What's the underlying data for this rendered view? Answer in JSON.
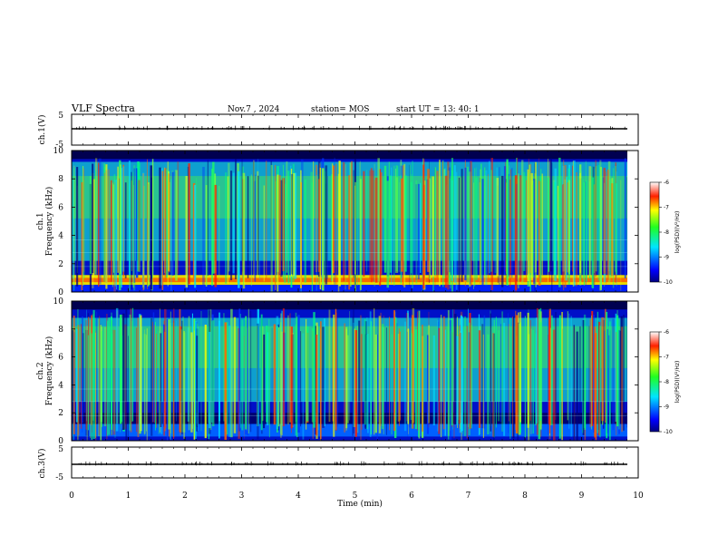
{
  "header": {
    "title": "VLF Spectra",
    "date": "Nov.7 , 2024",
    "station": "station= MOS",
    "start": "start UT =  13: 40: 1"
  },
  "chart_data": [
    {
      "type": "line",
      "panel": "ch1-waveform",
      "ylabel": "ch.1(V)",
      "ylim": [
        -5,
        5
      ],
      "yticks": [
        "5",
        "-5"
      ],
      "xlim": [
        0,
        10
      ],
      "series": [
        {
          "values": [
            0,
            0
          ]
        }
      ]
    },
    {
      "type": "heatmap",
      "panel": "ch1-spectrogram",
      "ylabel": "ch.1 Frequency (kHz)",
      "ylabel_line1": "ch.1",
      "ylabel_line2": "Frequency (kHz)",
      "ylim": [
        0,
        10
      ],
      "yticks": [
        "0",
        "2",
        "4",
        "6",
        "8",
        "10"
      ],
      "xlim": [
        0,
        9.85
      ],
      "colorbar": {
        "label": "log(PSD)(V²/Hz)",
        "range": [
          -10,
          -6
        ],
        "ticks": [
          "-6",
          "-7",
          "-8",
          "-9",
          "-10"
        ]
      }
    },
    {
      "type": "heatmap",
      "panel": "ch2-spectrogram",
      "ylabel": "ch.2 Frequency (kHz)",
      "ylabel_line1": "ch.2",
      "ylabel_line2": "Frequency (kHz)",
      "ylim": [
        0,
        10
      ],
      "yticks": [
        "0",
        "2",
        "4",
        "6",
        "8",
        "10"
      ],
      "xlim": [
        0,
        9.85
      ],
      "colorbar": {
        "label": "log(PSD)(V²/Hz)",
        "range": [
          -10,
          -6
        ],
        "ticks": [
          "-6",
          "-7",
          "-8",
          "-9",
          "-10"
        ]
      }
    },
    {
      "type": "line",
      "panel": "ch3-waveform",
      "ylabel": "ch.3(V)",
      "ylim": [
        -5,
        5
      ],
      "yticks": [
        "5",
        "-5"
      ],
      "xlim": [
        0,
        10
      ],
      "series": [
        {
          "values": [
            0,
            0
          ]
        }
      ]
    }
  ],
  "xaxis": {
    "label": "Time (min)",
    "ticks": [
      "0",
      "1",
      "2",
      "3",
      "4",
      "5",
      "6",
      "7",
      "8",
      "9",
      "10"
    ]
  }
}
